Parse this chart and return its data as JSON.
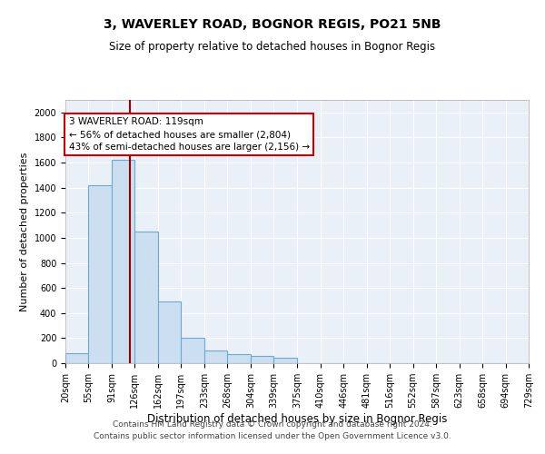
{
  "title1": "3, WAVERLEY ROAD, BOGNOR REGIS, PO21 5NB",
  "title2": "Size of property relative to detached houses in Bognor Regis",
  "xlabel": "Distribution of detached houses by size in Bognor Regis",
  "ylabel": "Number of detached properties",
  "annotation_line1": "3 WAVERLEY ROAD: 119sqm",
  "annotation_line2": "← 56% of detached houses are smaller (2,804)",
  "annotation_line3": "43% of semi-detached houses are larger (2,156) →",
  "footer1": "Contains HM Land Registry data © Crown copyright and database right 2024.",
  "footer2": "Contains public sector information licensed under the Open Government Licence v3.0.",
  "bin_edges": [
    20,
    55,
    91,
    126,
    162,
    197,
    233,
    268,
    304,
    339,
    375,
    410,
    446,
    481,
    516,
    552,
    587,
    623,
    658,
    694,
    729
  ],
  "bar_heights": [
    80,
    1420,
    1620,
    1050,
    490,
    205,
    100,
    70,
    55,
    45,
    0,
    0,
    0,
    0,
    0,
    0,
    0,
    0,
    0,
    0
  ],
  "property_size": 119,
  "bar_facecolor": "#ccdff0",
  "bar_edgecolor": "#6aabd4",
  "vline_color": "#990000",
  "background_color": "#eaf0f8",
  "annotation_box_facecolor": "#ffffff",
  "annotation_box_edgecolor": "#cc0000",
  "ylim": [
    0,
    2100
  ],
  "yticks": [
    0,
    200,
    400,
    600,
    800,
    1000,
    1200,
    1400,
    1600,
    1800,
    2000
  ],
  "grid_color": "#ffffff",
  "title1_fontsize": 10,
  "title2_fontsize": 8.5,
  "xlabel_fontsize": 8.5,
  "ylabel_fontsize": 8,
  "tick_fontsize": 7,
  "footer_fontsize": 6.5
}
